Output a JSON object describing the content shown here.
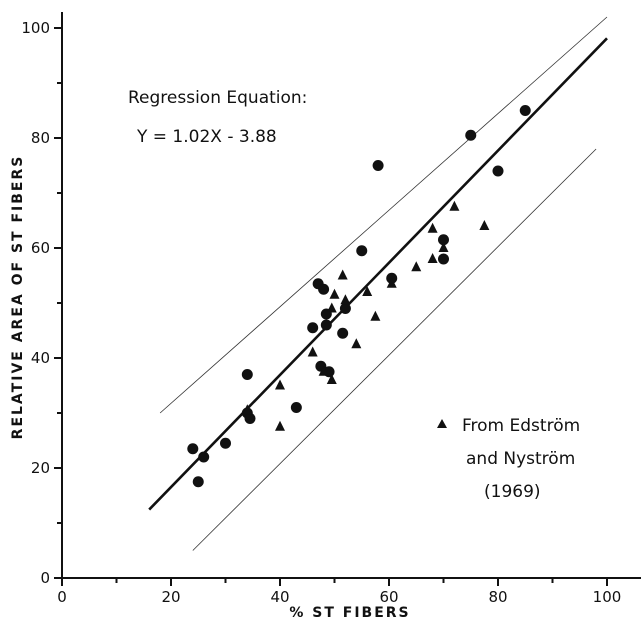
{
  "chart_data": {
    "type": "scatter",
    "xlabel": "% ST FIBERS",
    "ylabel": "RELATIVE AREA OF ST FIBERS",
    "xlim": [
      0,
      105
    ],
    "ylim": [
      0,
      102
    ],
    "x_ticks": [
      0,
      20,
      40,
      60,
      80,
      100
    ],
    "y_ticks": [
      0,
      20,
      40,
      60,
      80,
      100
    ],
    "x_tick_labels": [
      "0",
      "20",
      "40",
      "60",
      "80",
      "100"
    ],
    "y_tick_labels": [
      "0",
      "20",
      "40",
      "60",
      "80",
      "100"
    ],
    "grid": false,
    "regression": {
      "title": "Regression Equation:",
      "equation": "Y = 1.02X - 3.88",
      "slope": 1.02,
      "intercept": -3.88,
      "x_range": [
        16,
        100
      ]
    },
    "confidence_band": {
      "upper": [
        [
          18,
          30
        ],
        [
          100,
          102
        ]
      ],
      "lower": [
        [
          24,
          5
        ],
        [
          98,
          78
        ]
      ]
    },
    "legend_text": [
      "From Edström",
      "and Nyström",
      "(1969)"
    ],
    "series": [
      {
        "marker": "circle",
        "points": [
          [
            24,
            23.5
          ],
          [
            25,
            17.5
          ],
          [
            26,
            22
          ],
          [
            30,
            24.5
          ],
          [
            34,
            37
          ],
          [
            34,
            30
          ],
          [
            34.5,
            29
          ],
          [
            43,
            31
          ],
          [
            46,
            45.5
          ],
          [
            47,
            53.5
          ],
          [
            47.5,
            38.5
          ],
          [
            48,
            52.5
          ],
          [
            48.5,
            46
          ],
          [
            48.5,
            48
          ],
          [
            49,
            37.5
          ],
          [
            51.5,
            44.5
          ],
          [
            52,
            49
          ],
          [
            55,
            59.5
          ],
          [
            58,
            75
          ],
          [
            60.5,
            54.5
          ],
          [
            70,
            61.5
          ],
          [
            70,
            58
          ],
          [
            75,
            80.5
          ],
          [
            80,
            74
          ],
          [
            85,
            85
          ]
        ]
      },
      {
        "marker": "triangle",
        "points": [
          [
            34,
            30.5
          ],
          [
            40,
            35
          ],
          [
            40,
            27.5
          ],
          [
            46,
            41
          ],
          [
            48,
            37.5
          ],
          [
            49.5,
            36
          ],
          [
            49.5,
            49
          ],
          [
            50,
            51.5
          ],
          [
            51.5,
            55
          ],
          [
            52,
            50.5
          ],
          [
            54,
            42.5
          ],
          [
            56,
            52
          ],
          [
            57.5,
            47.5
          ],
          [
            60.5,
            53.5
          ],
          [
            65,
            56.5
          ],
          [
            68,
            58
          ],
          [
            68,
            63.5
          ],
          [
            70,
            60
          ],
          [
            72,
            67.5
          ],
          [
            77.5,
            64
          ]
        ]
      }
    ]
  }
}
